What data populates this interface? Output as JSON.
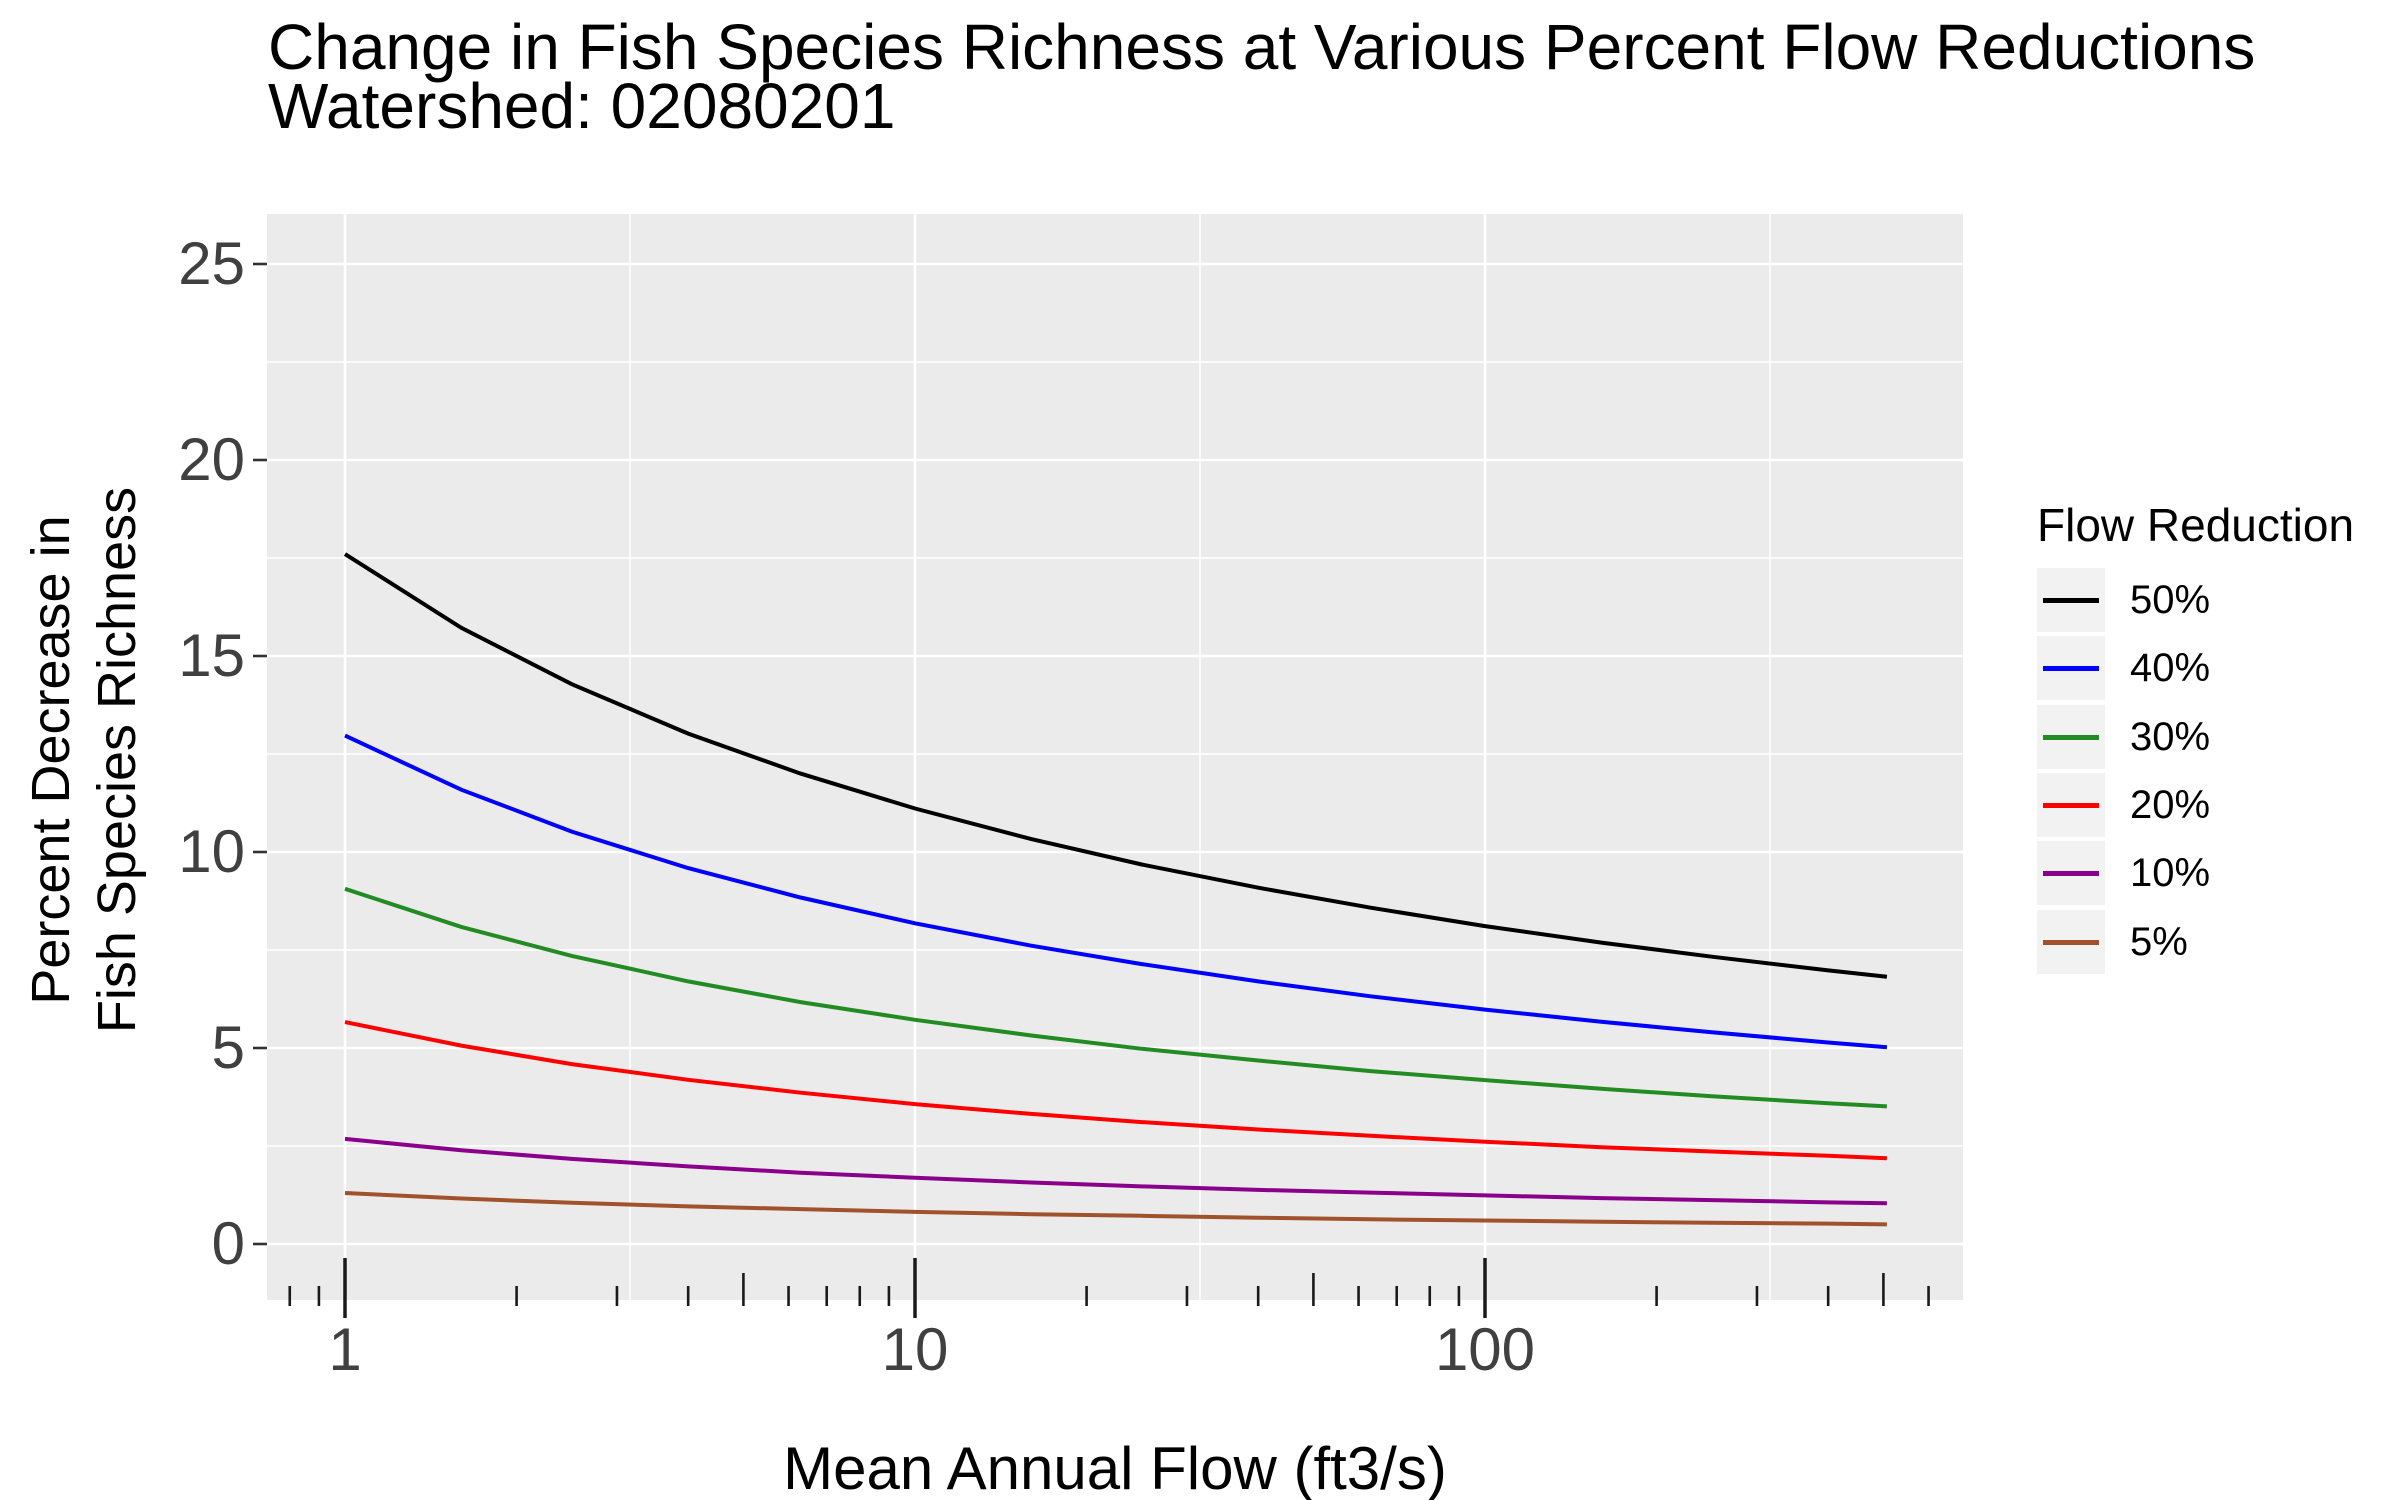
{
  "chart_data": {
    "type": "line",
    "title": "Change in Fish Species Richness at Various Percent Flow Reductions",
    "subtitle": "Watershed: 02080201",
    "xlabel": "Mean Annual Flow (ft3/s)",
    "ylabel_lines": [
      "Percent Decrease in",
      "Fish Species Richness"
    ],
    "x_scale": "log10",
    "xlim": [
      0.74,
      690
    ],
    "ylim": [
      -1.4,
      26.3
    ],
    "grid": true,
    "panel_bg": "#EBEBEB",
    "gridline_color": "#FFFFFF",
    "tick_label_color": "#404040",
    "legend_title": "Flow Reduction",
    "legend_position": "right",
    "legend_key_bg": "#F2F2F2",
    "x_ticks": [
      {
        "value": 1,
        "label": "1"
      },
      {
        "value": 10,
        "label": "10"
      },
      {
        "value": 100,
        "label": "100"
      }
    ],
    "x_minor_gridlines": [
      3.1623,
      31.623,
      316.23
    ],
    "y_ticks": [
      {
        "value": 0,
        "label": "0"
      },
      {
        "value": 5,
        "label": "5"
      },
      {
        "value": 10,
        "label": "10"
      },
      {
        "value": 15,
        "label": "15"
      },
      {
        "value": 20,
        "label": "20"
      },
      {
        "value": 25,
        "label": "25"
      }
    ],
    "y_minor_gridlines": [
      2.5,
      7.5,
      12.5,
      17.5,
      22.5
    ],
    "log_ticks": {
      "long": [
        1,
        10,
        100
      ],
      "medium": [
        5,
        50,
        500
      ],
      "short": [
        0.8,
        0.9,
        2,
        3,
        4,
        6,
        7,
        8,
        9,
        20,
        30,
        40,
        60,
        70,
        80,
        90,
        200,
        300,
        400,
        600
      ]
    },
    "x": [
      1,
      1.6,
      2.5,
      4,
      6.3,
      10,
      16,
      25,
      40,
      63,
      100,
      160,
      250,
      400,
      507
    ],
    "series": [
      {
        "name": "50%",
        "color": "#000000",
        "values": [
          17.6,
          15.72,
          14.28,
          13.02,
          12.0,
          11.11,
          10.33,
          9.68,
          9.09,
          8.58,
          8.11,
          7.69,
          7.33,
          6.98,
          6.82
        ]
      },
      {
        "name": "40%",
        "color": "#0000FF",
        "values": [
          12.97,
          11.59,
          10.52,
          9.59,
          8.84,
          8.18,
          7.61,
          7.14,
          6.7,
          6.32,
          5.98,
          5.67,
          5.4,
          5.14,
          5.02
        ]
      },
      {
        "name": "30%",
        "color": "#228B22",
        "values": [
          9.06,
          8.09,
          7.35,
          6.7,
          6.17,
          5.72,
          5.32,
          4.98,
          4.68,
          4.41,
          4.18,
          3.96,
          3.77,
          3.59,
          3.51
        ]
      },
      {
        "name": "20%",
        "color": "#FF0000",
        "values": [
          5.66,
          5.06,
          4.59,
          4.19,
          3.86,
          3.57,
          3.32,
          3.11,
          2.92,
          2.76,
          2.61,
          2.47,
          2.36,
          2.25,
          2.19
        ]
      },
      {
        "name": "10%",
        "color": "#8B008B",
        "values": [
          2.68,
          2.39,
          2.17,
          1.98,
          1.82,
          1.69,
          1.57,
          1.47,
          1.38,
          1.31,
          1.24,
          1.17,
          1.12,
          1.06,
          1.04
        ]
      },
      {
        "name": "5%",
        "color": "#A0522D",
        "values": [
          1.3,
          1.16,
          1.05,
          0.96,
          0.89,
          0.82,
          0.76,
          0.72,
          0.67,
          0.63,
          0.6,
          0.57,
          0.54,
          0.52,
          0.5
        ]
      }
    ]
  }
}
